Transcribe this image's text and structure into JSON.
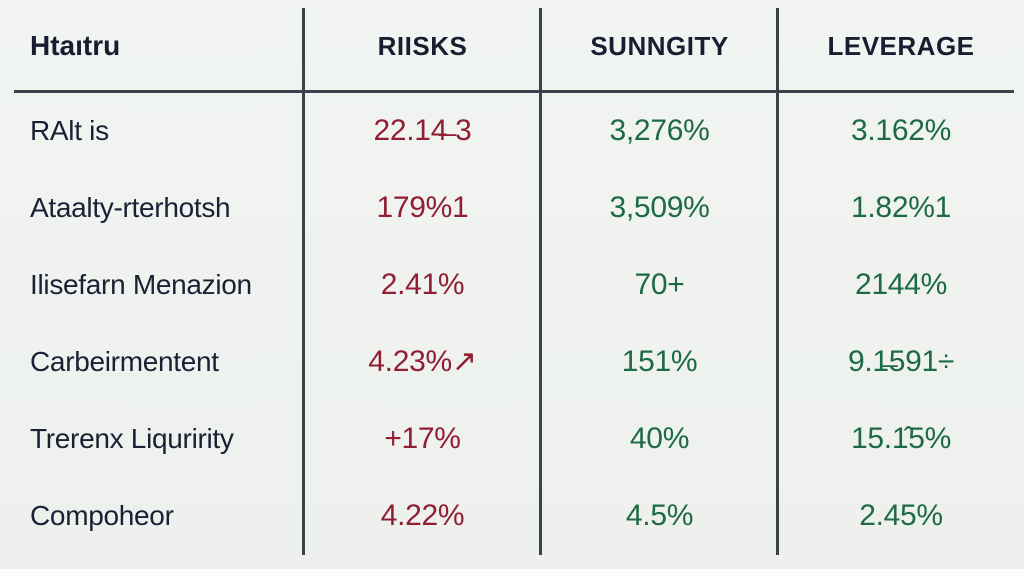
{
  "theme": {
    "background": "#eff2ef",
    "line": "#3c424a",
    "header_text": "#171e31",
    "label_text": "#1a2134",
    "risk_value": "#911f33",
    "positive_value": "#1d6a45",
    "bottom_strip": "#fbfdfb"
  },
  "chart_data": {
    "type": "table",
    "title": "",
    "legend": "none",
    "grid": "column-rules-and-header-rule",
    "columns": [
      "Htaıtru",
      "RIISKS",
      "SUNNGITY",
      "LEVERAGE"
    ],
    "rows": [
      {
        "label": "RAlt is",
        "risks": "22.14̶ 3",
        "sunngity": "3,276%",
        "leverage": "3.162%"
      },
      {
        "label": "Ataalty-rterhotsh",
        "risks": "179%1",
        "sunngity": "3,509%",
        "leverage": "1.82%1"
      },
      {
        "label": "Ilisefarn Menazion",
        "risks": "2.41%",
        "sunngity": "70+",
        "leverage": "2144%"
      },
      {
        "label": "Carbeirmentent",
        "risks": "4.23%↗",
        "sunngity": "151%",
        "leverage": "9.1̶591÷"
      },
      {
        "label": "Trerenx Liquririty",
        "risks": "+17%",
        "sunngity": "40%",
        "leverage": "15.1̂5%"
      },
      {
        "label": "Compoheor",
        "risks": "4.22%",
        "sunngity": "4.5%",
        "leverage": "2.45%"
      }
    ]
  }
}
